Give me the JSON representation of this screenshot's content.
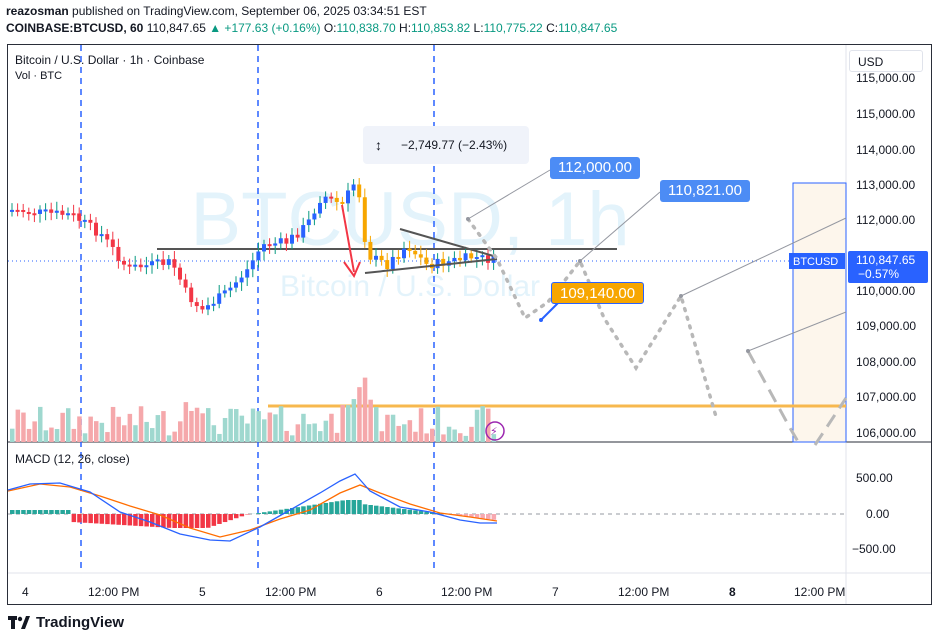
{
  "header": {
    "publisher": "reazosman",
    "published_text": " published on TradingView.com, September 06, 2025 03:34:51 EST",
    "symbol": "COINBASE:BTCUSD, 60",
    "last": "110,847.65",
    "change": "▲ +177.63 (+0.16%)",
    "o_label": "O:",
    "o": "110,838.70",
    "h_label": "H:",
    "h": "110,853.82",
    "l_label": "L:",
    "l": "110,775.22",
    "c_label": "C:",
    "c": "110,847.65"
  },
  "legend": {
    "title": "Bitcoin / U.S. Dollar · 1h · Coinbase",
    "volume": "Vol · BTC",
    "macd": "MACD (12, 26, close)"
  },
  "watermark": {
    "main": "BTCUSD, 1h",
    "sub": "Bitcoin / U.S. Dollar"
  },
  "currency_button": "USD",
  "measure": {
    "icon": "↕",
    "text": "−2,749.77 (−2.43%)"
  },
  "callouts": {
    "c1": "112,000.00",
    "c2": "110,821.00",
    "c3": "109,140.00"
  },
  "price_axis": {
    "labels": [
      "115,000.00",
      "114,000.00",
      "113,000.00",
      "112,000.00",
      "111,000.00",
      "110,000.00",
      "109,000.00",
      "108,000.00",
      "107,000.00",
      "106,000.00"
    ],
    "symbol_tag": "BTCUSD",
    "price_tag": "110,847.65",
    "price_tag_change": "−0.57%"
  },
  "macd_axis": {
    "labels": [
      "500.00",
      "0.00",
      "−500.00"
    ]
  },
  "time_axis": {
    "labels": [
      "4",
      "12:00 PM",
      "5",
      "12:00 PM",
      "6",
      "12:00 PM",
      "7",
      "12:00 PM",
      "8",
      "12:00 PM"
    ]
  },
  "footer": {
    "brand": "TradingView"
  },
  "colors": {
    "up": "#089981",
    "down": "#f23645",
    "accent": "#2962ff",
    "orange": "#f7a600",
    "callout_blue": "#4c8cf5",
    "callout_orange": "#f7a600"
  }
}
